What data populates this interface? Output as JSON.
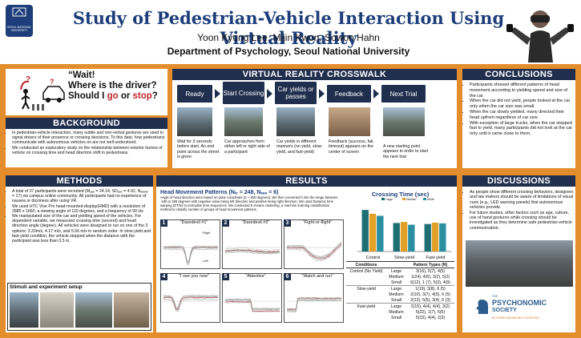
{
  "header": {
    "title": "Study of Pedestrian-Vehicle Interaction Using Virtual Reality",
    "authors": "Yoon Kyung Lee, Mijin Kwon, Sowon Hahn",
    "department": "Department of Psychology, Seoul National University",
    "logo_text": "SEOUL NATIONAL UNIVERSITY"
  },
  "intro_box": {
    "line1": "“Wait!",
    "line2": "Where is the driver?",
    "line3_a": "Should I ",
    "line3_go": "go",
    "line3_or": " or ",
    "line3_stop": "stop",
    "line3_q": "?"
  },
  "background": {
    "heading": "BACKGROUND",
    "bullets": [
      "In pedestrian-vehicle interaction, many subtle and non-verbal gestures are used to signal drivers of their presence or crossing decisions. To this date, how pedestrians communicate with autonomous vehicles on are not well understood.",
      "We conducted an exploratory study on  the relationship between exterior factors of vehicle on crossing time and head direction shift in pedestrians."
    ]
  },
  "methods": {
    "heading": "METHODS",
    "bullets": [
      "A total of 37 participants were recruited (Mₐₑₑ = 24.14, SDₐₑₑ = 4.92, Nₑₑₑₑₑ = 17) via campus online community. All participants had no experience of nausea or dizziness after using VR.",
      "We used HTC Vive Pro head-mounted-display(HMD) with a resolution of 2880 x 1660, a viewing angle of 110 degrees, and a frequency of 90 Hz.",
      "We manipulated size of the car and yielding speed of the vehicles. For dependent variable, we measured crossing time (second) and head direction angle (degree). All vehicles were designed to run on one of the 3 options: 3.33m/s, 4.17 m/s, and 5.56 m/s in random order. In slow-yield and fast-yield condition, the vehicle stopped when the distance with the participant was less than 0.5 m."
    ],
    "stimuli_title": "Stimuli and experiment setup"
  },
  "crosswalk": {
    "heading": "VIRTUAL REALITY CROSSWALK",
    "steps": [
      {
        "label": "Ready",
        "desc": "Wait for 3 seconds before start. An end point across the street is given"
      },
      {
        "label": "Start Crossing",
        "desc": "Car approaches from either left or right side of a participant"
      },
      {
        "label": "Car yields or passes",
        "desc": "Car yields in different manners (no yield, slow-yield, and fast-yield)"
      },
      {
        "label": "Feedback",
        "desc": "Feedback (success, fail, timeout) appears on the center of screen"
      },
      {
        "label": "Next Trial",
        "desc": "A new starting point appears in order to start the next trial"
      }
    ]
  },
  "results": {
    "heading": "RESULTS",
    "hmp_title": "Head Movement Patterns",
    "hmp_stats": "(Nₜᵣ = 248, Nₛₑₑ = 6)",
    "hmp_desc": "Angle of head direction were based on polar coordinate (0 ~ 360 degrees). We then converted it into the range between -180 to 180 degrees with negative value being left direction and positive being right direction. We used Dynamic time warping (DTW) to normalize time sequences. We conducted K-means clustering, a machine learning classification method to classify number of groups of head movement patterns.",
    "patterns": [
      {
        "num": "1",
        "name": "“Daredevil #1”"
      },
      {
        "num": "2",
        "name": "“Daredevil #2”"
      },
      {
        "num": "3",
        "name": "“Fight-or-flight”"
      },
      {
        "num": "4",
        "name": "“I see you now”"
      },
      {
        "num": "5",
        "name": "“Attentive”"
      },
      {
        "num": "6",
        "name": "“Watch and run”"
      }
    ],
    "right_label": "Right",
    "left_label": "Left",
    "crossing_title": "Crossing Time (sec)",
    "table_headers": [
      "Conditions",
      "",
      "Pattern Types (N)"
    ],
    "table_rows": [
      {
        "cond": "Control (No Yield)",
        "size": "Large",
        "patterns": "3(16), 5(7), 4(5)"
      },
      {
        "cond": "",
        "size": "Medium",
        "patterns": "1(24), 4(6), 3(2), 5(2)"
      },
      {
        "cond": "",
        "size": "Small",
        "patterns": "6(12), 1 (7), 5(3), 4(9)"
      },
      {
        "cond": "Slow-yield",
        "size": "Large",
        "patterns": "1(19), 3(8), 6 (5)"
      },
      {
        "cond": "",
        "size": "Medium",
        "patterns": "2(10), 3(7), 4(5), 6 (5)"
      },
      {
        "cond": "",
        "size": "Small",
        "patterns": "2(13), 5(5), 3(4), 6 (3)"
      },
      {
        "cond": "Fast-yield",
        "size": "Large",
        "patterns": "2(15), 4(4), 4(4), 3(2)"
      },
      {
        "cond": "",
        "size": "Medium",
        "patterns": "5(22), 1(7), 6(5)"
      },
      {
        "cond": "",
        "size": "Small",
        "patterns": "5(15), 4(4), 2(3)"
      }
    ]
  },
  "conclusions": {
    "heading": "CONCLUSIONS",
    "bullets": [
      "Participants showed different patterns of head movement according to yielding speed and size of the car.",
      "When the car did not yield, people looked at the car only when the car size was small.",
      "When the car slowly yielded, many directed their head upfront regardless of car size.",
      "With exception of large trucks, when the car stopped fast to yield, many participants did not look at the car only until it came close to them."
    ]
  },
  "discussions": {
    "heading": "DISCUSSIONS",
    "bullets": [
      "As people show different crossing behaviors, designers and law makers should be aware of limitations of visual cues (e.g., LED warning panels) that autonomous vehicles provide.",
      "For future studies, other factors such as age, culture, use of hand gestures while crossing should be investigated as they determine safe pedestrian-vehicle communication."
    ]
  },
  "psychonomic": {
    "line1": "THE",
    "line2": "PSYCHONOMIC",
    "line3": "SOCIETY",
    "line4": "60 YEARS ADVANCING COGNITION"
  },
  "chart_data": {
    "type": "bar",
    "title": "Crossing Time (sec)",
    "categories": [
      "Control",
      "Slow-yield",
      "Fast-yield"
    ],
    "series": [
      {
        "name": "Large",
        "values": [
          12.1,
          8.3,
          8.0
        ]
      },
      {
        "name": "Medium",
        "values": [
          11.0,
          8.6,
          8.4
        ]
      },
      {
        "name": "Small",
        "values": [
          10.4,
          7.8,
          8.2
        ]
      }
    ],
    "ylim": [
      0,
      14
    ],
    "colors": [
      "#1e6f74",
      "#e0a126",
      "#2a8fa1"
    ],
    "legend": "top"
  }
}
